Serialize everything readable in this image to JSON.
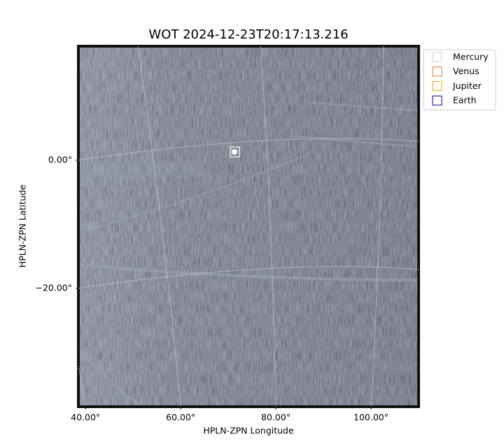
{
  "chart_data": {
    "type": "image",
    "title": "WOT 2024-12-23T20:17:13.216",
    "xlabel": "HPLN-ZPN Longitude",
    "ylabel": "HPLN-ZPN Latitude",
    "xlim": [
      38.5,
      110
    ],
    "ylim": [
      -38.5,
      17.8
    ],
    "xticks": [
      {
        "value": 40,
        "label": "40.00°"
      },
      {
        "value": 60,
        "label": "60.00°"
      },
      {
        "value": 80,
        "label": "80.00°"
      },
      {
        "value": 100,
        "label": "100.00°"
      }
    ],
    "yticks": [
      {
        "value": 0,
        "label": "0.00°"
      },
      {
        "value": -20,
        "label": "−20.00°"
      }
    ],
    "grid": true,
    "legend": "upper right outside",
    "series": [
      {
        "name": "Mercury",
        "color": "#d3d3d3"
      },
      {
        "name": "Venus",
        "color": "#e07b39"
      },
      {
        "name": "Jupiter",
        "color": "#e6a817"
      },
      {
        "name": "Earth",
        "color": "#000080"
      }
    ]
  }
}
